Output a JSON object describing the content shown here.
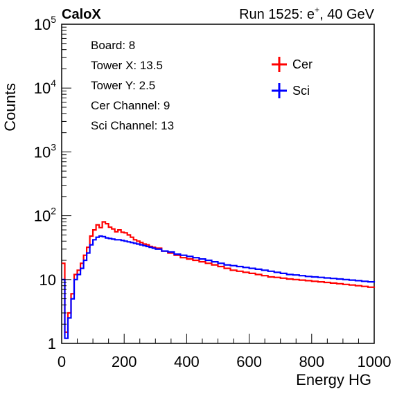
{
  "chart_data": {
    "type": "line",
    "step": true,
    "y_scale": "log",
    "xlim": [
      0,
      1000
    ],
    "ylim": [
      1,
      100000
    ],
    "xlabel": "Energy HG",
    "ylabel": "Counts",
    "x_ticks": [
      0,
      200,
      400,
      600,
      800,
      1000
    ],
    "y_ticks": [
      {
        "base": "1",
        "exp": ""
      },
      {
        "base": "10",
        "exp": ""
      },
      {
        "base": "10",
        "exp": "2"
      },
      {
        "base": "10",
        "exp": "3"
      },
      {
        "base": "10",
        "exp": "4"
      },
      {
        "base": "10",
        "exp": "5"
      }
    ],
    "top_left_label": "CaloX",
    "top_right_label": {
      "pre": "Run 1525: e",
      "sup": "+",
      "post": ", 40 GeV"
    },
    "info_lines": [
      "Board: 8",
      "Tower X: 13.5",
      "Tower Y: 2.5",
      "Cer Channel: 9",
      "Sci Channel: 13"
    ],
    "grid": false,
    "legend_position": "top-right",
    "series": [
      {
        "name": "Cer",
        "color": "#ff0000",
        "x": [
          0,
          10,
          20,
          30,
          40,
          50,
          60,
          70,
          80,
          90,
          100,
          110,
          120,
          130,
          140,
          150,
          160,
          170,
          180,
          190,
          200,
          210,
          220,
          230,
          240,
          250,
          260,
          270,
          280,
          290,
          300,
          320,
          340,
          360,
          380,
          400,
          420,
          440,
          460,
          480,
          500,
          520,
          540,
          560,
          580,
          600,
          620,
          640,
          660,
          680,
          700,
          720,
          740,
          760,
          780,
          800,
          820,
          840,
          860,
          880,
          900,
          920,
          940,
          960,
          980,
          1000
        ],
        "y": [
          18,
          1.5,
          3,
          6,
          12,
          14,
          18,
          24,
          32,
          48,
          60,
          72,
          65,
          80,
          75,
          66,
          62,
          56,
          60,
          55,
          54,
          50,
          46,
          42,
          40,
          38,
          36,
          35,
          33,
          32,
          31,
          28,
          26,
          24,
          22,
          21,
          20,
          19,
          18,
          17,
          16,
          15,
          14,
          13.5,
          13,
          12.5,
          12,
          11.5,
          11,
          10.8,
          10.5,
          10.2,
          10,
          9.8,
          9.6,
          9.4,
          9.2,
          9,
          8.8,
          8.6,
          8.4,
          8.2,
          8,
          7.8,
          7.6,
          7.4
        ]
      },
      {
        "name": "Sci",
        "color": "#0000ff",
        "x": [
          0,
          10,
          20,
          30,
          40,
          50,
          60,
          70,
          80,
          90,
          100,
          110,
          120,
          130,
          140,
          150,
          160,
          170,
          180,
          190,
          200,
          210,
          220,
          230,
          240,
          250,
          260,
          270,
          280,
          290,
          300,
          320,
          340,
          360,
          380,
          400,
          420,
          440,
          460,
          480,
          500,
          520,
          540,
          560,
          580,
          600,
          620,
          640,
          660,
          680,
          700,
          720,
          740,
          760,
          780,
          800,
          820,
          840,
          860,
          880,
          900,
          920,
          940,
          960,
          980,
          1000
        ],
        "y": [
          10,
          1.2,
          2.5,
          5,
          10,
          12,
          15,
          20,
          26,
          35,
          42,
          46,
          48,
          47,
          45,
          44,
          43,
          42,
          42,
          41,
          40,
          39,
          38,
          37,
          36,
          35,
          34,
          33,
          32,
          31,
          30,
          28,
          27,
          25,
          24,
          23,
          22,
          21,
          20,
          19,
          18,
          17,
          16.5,
          16,
          15.5,
          15,
          14.5,
          14,
          13.5,
          13,
          12.5,
          12,
          11.8,
          11.5,
          11.2,
          11,
          10.8,
          10.6,
          10.4,
          10.2,
          10,
          9.8,
          9.6,
          9.4,
          9.2,
          9
        ]
      }
    ]
  }
}
